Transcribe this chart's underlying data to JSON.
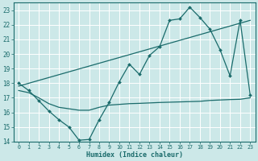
{
  "bg_color": "#cce8e8",
  "grid_color": "#ffffff",
  "line_color": "#1a6b6b",
  "xlabel": "Humidex (Indice chaleur)",
  "xlim": [
    -0.5,
    23.5
  ],
  "ylim": [
    14,
    23.5
  ],
  "yticks": [
    14,
    15,
    16,
    17,
    18,
    19,
    20,
    21,
    22,
    23
  ],
  "xticks": [
    0,
    1,
    2,
    3,
    4,
    5,
    6,
    7,
    8,
    9,
    10,
    11,
    12,
    13,
    14,
    15,
    16,
    17,
    18,
    19,
    20,
    21,
    22,
    23
  ],
  "line1_x": [
    0,
    1,
    2,
    3,
    4,
    5,
    6,
    7,
    8,
    9,
    10,
    11,
    12,
    13,
    14,
    15,
    16,
    17,
    18,
    19,
    20,
    21,
    22,
    23
  ],
  "line1_y": [
    18.0,
    17.5,
    16.8,
    16.1,
    15.5,
    15.0,
    14.1,
    14.15,
    15.5,
    16.7,
    18.1,
    19.3,
    18.6,
    19.9,
    20.5,
    22.3,
    22.4,
    23.2,
    22.5,
    21.7,
    20.3,
    18.5,
    22.3,
    17.2
  ],
  "line2_x": [
    0,
    23
  ],
  "line2_y": [
    17.8,
    22.3
  ],
  "line3_x": [
    0,
    1,
    2,
    3,
    4,
    5,
    6,
    7,
    8,
    9,
    10,
    11,
    12,
    13,
    14,
    15,
    16,
    17,
    18,
    19,
    20,
    21,
    22,
    23
  ],
  "line3_y": [
    17.5,
    17.35,
    17.0,
    16.6,
    16.35,
    16.25,
    16.15,
    16.15,
    16.35,
    16.5,
    16.55,
    16.6,
    16.62,
    16.65,
    16.68,
    16.7,
    16.72,
    16.74,
    16.76,
    16.82,
    16.85,
    16.88,
    16.9,
    17.0
  ]
}
